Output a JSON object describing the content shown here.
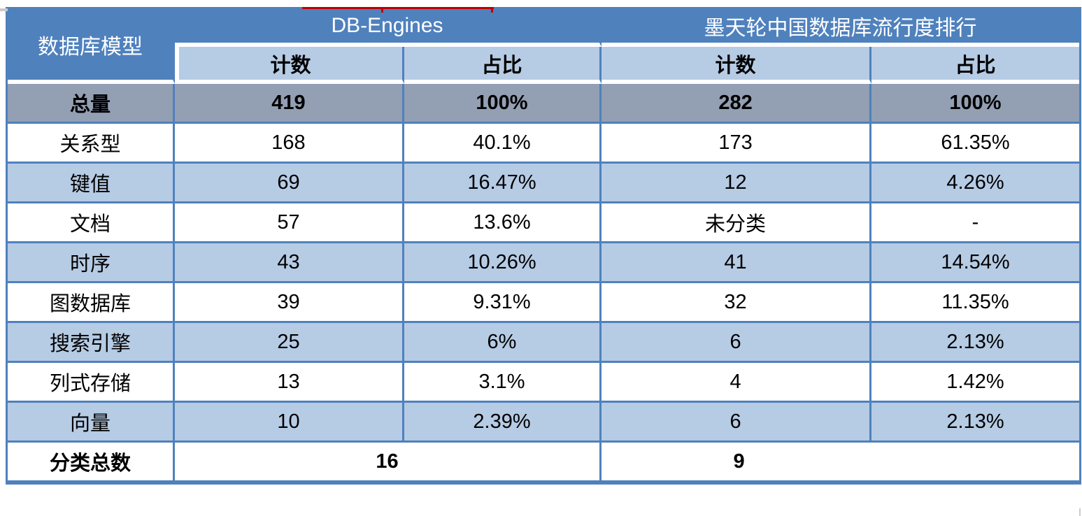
{
  "table": {
    "corner_header": "数据库模型",
    "groups": [
      {
        "label": "DB-Engines",
        "columns": [
          "计数",
          "占比"
        ]
      },
      {
        "label": "墨天轮中国数据库流行度排行",
        "columns": [
          "计数",
          "占比"
        ]
      }
    ],
    "rows": [
      {
        "label": "总量",
        "values": [
          "419",
          "100%",
          "282",
          "100%"
        ],
        "style": "total"
      },
      {
        "label": "关系型",
        "values": [
          "168",
          "40.1%",
          "173",
          "61.35%"
        ]
      },
      {
        "label": "键值",
        "values": [
          "69",
          "16.47%",
          "12",
          "4.26%"
        ]
      },
      {
        "label": "文档",
        "values": [
          "57",
          "13.6%",
          "未分类",
          "-"
        ]
      },
      {
        "label": "时序",
        "values": [
          "43",
          "10.26%",
          "41",
          "14.54%"
        ]
      },
      {
        "label": "图数据库",
        "values": [
          "39",
          "9.31%",
          "32",
          "11.35%"
        ]
      },
      {
        "label": "搜索引擎",
        "values": [
          "25",
          "6%",
          "6",
          "2.13%"
        ]
      },
      {
        "label": "列式存储",
        "values": [
          "13",
          "3.1%",
          "4",
          "1.42%"
        ]
      },
      {
        "label": "向量",
        "values": [
          "10",
          "2.39%",
          "6",
          "2.13%"
        ]
      }
    ],
    "footer": {
      "label": "分类总数",
      "values": [
        "16",
        "9"
      ]
    }
  },
  "chart_data": {
    "type": "table",
    "title": "数据库模型统计：DB-Engines 与 墨天轮中国数据库流行度排行",
    "columns": [
      "数据库模型",
      "DB-Engines 计数",
      "DB-Engines 占比",
      "墨天轮 计数",
      "墨天轮 占比"
    ],
    "rows": [
      [
        "总量",
        "419",
        "100%",
        "282",
        "100%"
      ],
      [
        "关系型",
        "168",
        "40.1%",
        "173",
        "61.35%"
      ],
      [
        "键值",
        "69",
        "16.47%",
        "12",
        "4.26%"
      ],
      [
        "文档",
        "57",
        "13.6%",
        "未分类",
        "-"
      ],
      [
        "时序",
        "43",
        "10.26%",
        "41",
        "14.54%"
      ],
      [
        "图数据库",
        "39",
        "9.31%",
        "32",
        "11.35%"
      ],
      [
        "搜索引擎",
        "25",
        "6%",
        "6",
        "2.13%"
      ],
      [
        "列式存储",
        "13",
        "3.1%",
        "4",
        "1.42%"
      ],
      [
        "向量",
        "10",
        "2.39%",
        "6",
        "2.13%"
      ],
      [
        "分类总数",
        "16",
        "",
        "9",
        ""
      ]
    ]
  },
  "colors": {
    "header_blue": "#4F81BD",
    "light_blue": "#B6CBE4",
    "total_row_gray": "#939FB3",
    "border_blue": "#4F81BD",
    "text_dark": "#000000",
    "header_text": "#FFFFFF",
    "artifact_red": "#C00000"
  }
}
